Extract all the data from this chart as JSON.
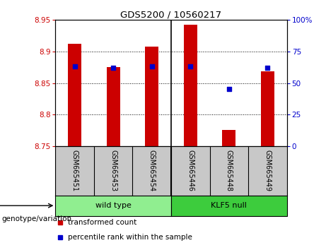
{
  "title": "GDS5200 / 10560217",
  "samples": [
    "GSM665451",
    "GSM665453",
    "GSM665454",
    "GSM665446",
    "GSM665448",
    "GSM665449"
  ],
  "transformed_counts": [
    8.912,
    8.875,
    8.908,
    8.943,
    8.775,
    8.868
  ],
  "percentile_ranks": [
    63,
    62,
    63,
    63,
    45,
    62
  ],
  "ylim_left": [
    8.75,
    8.95
  ],
  "ylim_right": [
    0,
    100
  ],
  "yticks_left": [
    8.75,
    8.8,
    8.85,
    8.9,
    8.95
  ],
  "yticks_right": [
    0,
    25,
    50,
    75,
    100
  ],
  "ytick_labels_left": [
    "8.75",
    "8.8",
    "8.85",
    "8.9",
    "8.95"
  ],
  "ytick_labels_right": [
    "0",
    "25",
    "50",
    "75",
    "100%"
  ],
  "groups": [
    {
      "label": "wild type",
      "indices": [
        0,
        1,
        2
      ],
      "color": "#90ee90"
    },
    {
      "label": "KLF5 null",
      "indices": [
        3,
        4,
        5
      ],
      "color": "#3dcc3d"
    }
  ],
  "bar_color": "#cc0000",
  "dot_color": "#0000cc",
  "bar_width": 0.35,
  "legend_items": [
    {
      "label": "transformed count",
      "color": "#cc0000"
    },
    {
      "label": "percentile rank within the sample",
      "color": "#0000cc"
    }
  ],
  "genotype_label": "genotype/variation",
  "tick_color_left": "#cc0000",
  "tick_color_right": "#0000cc",
  "xlabel_bg_color": "#c8c8c8",
  "dot_size": 18
}
